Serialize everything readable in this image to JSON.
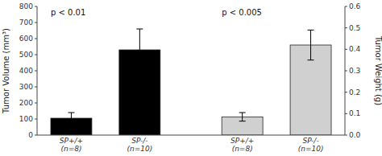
{
  "chart_data": {
    "type": "bar",
    "categories": [
      "SP+/+\n(n=8)",
      "SP-/-\n(n=10)",
      "SP+/+\n(n=8)",
      "SP-/-\n(n=10)"
    ],
    "series": [
      {
        "color": "black",
        "values": [
          105,
          530,
          null,
          null
        ],
        "errors": [
          35,
          130,
          null,
          null
        ]
      },
      {
        "color": "#d0d0d0",
        "axis": "y2",
        "values": [
          null,
          null,
          0.085,
          0.42
        ],
        "errors": [
          null,
          null,
          0.02,
          0.07
        ]
      }
    ],
    "y_label": "Tumor Volume (mm³)",
    "y2_label": "Tumor Weight (g)",
    "ylim": [
      0,
      800
    ],
    "yticks": [
      0,
      100,
      200,
      300,
      400,
      500,
      600,
      700,
      800
    ],
    "y2lim": [
      0.0,
      0.6
    ],
    "y2ticks": [
      {
        "value": 0.0,
        "label": "0.0"
      },
      0.1,
      0.2,
      0.3,
      0.4,
      0.5,
      0.6
    ],
    "annotations": [
      "p < 0.01",
      "p < 0.005"
    ],
    "grid": false
  }
}
